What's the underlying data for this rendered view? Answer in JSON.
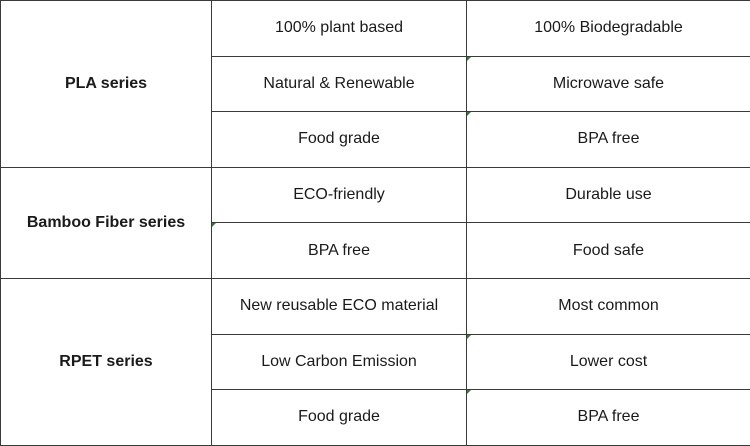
{
  "groups": [
    {
      "name": "PLA series",
      "rows": [
        [
          "100% plant based",
          "100% Biodegradable"
        ],
        [
          "Natural & Renewable",
          "Microwave safe"
        ],
        [
          "Food grade",
          "BPA free"
        ]
      ]
    },
    {
      "name": "Bamboo Fiber series",
      "rows": [
        [
          "ECO-friendly",
          "Durable use"
        ],
        [
          "BPA free",
          "Food safe"
        ]
      ]
    },
    {
      "name": "RPET series",
      "rows": [
        [
          "New reusable ECO material",
          "Most common"
        ],
        [
          "Low Carbon Emission",
          "Lower cost"
        ],
        [
          "Food grade",
          "BPA free"
        ]
      ]
    }
  ]
}
